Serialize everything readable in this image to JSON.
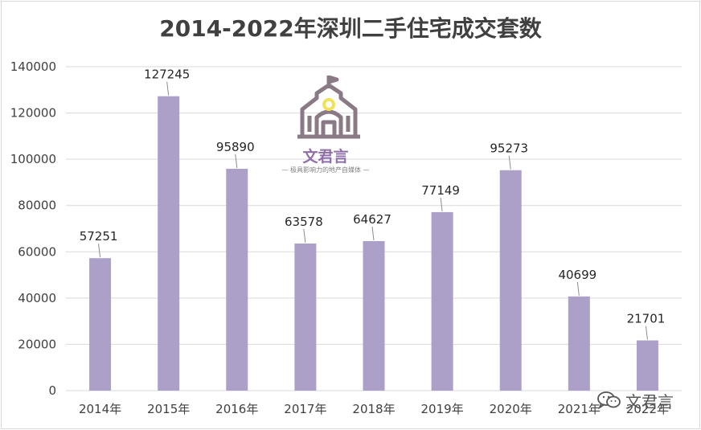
{
  "chart_data": {
    "type": "bar",
    "title": "2014-2022年深圳二手住宅成交套数",
    "xlabel": "",
    "ylabel": "",
    "categories": [
      "2014年",
      "2015年",
      "2016年",
      "2017年",
      "2018年",
      "2019年",
      "2020年",
      "2021年",
      "2022年"
    ],
    "values": [
      57251,
      127245,
      95890,
      63578,
      64627,
      77149,
      95273,
      40699,
      21701
    ],
    "data_labels": [
      "57251",
      "127245",
      "95890",
      "63578",
      "64627",
      "77149",
      "95273",
      "40699",
      "21701"
    ],
    "ylim": [
      0,
      140000
    ],
    "yticks": [
      0,
      20000,
      40000,
      60000,
      80000,
      100000,
      120000,
      140000
    ],
    "ytick_labels": [
      "0",
      "20000",
      "40000",
      "60000",
      "80000",
      "100000",
      "120000",
      "140000"
    ],
    "grid": true,
    "legend": "none",
    "bar_color": "#ada0c8"
  },
  "logo": {
    "name": "文君言",
    "tagline": "— 极具影响力的地产自媒体 —",
    "icon": "school-building-icon",
    "color": "#8e6fa8"
  },
  "watermark": {
    "text": "文君言",
    "icon": "wechat-icon"
  }
}
